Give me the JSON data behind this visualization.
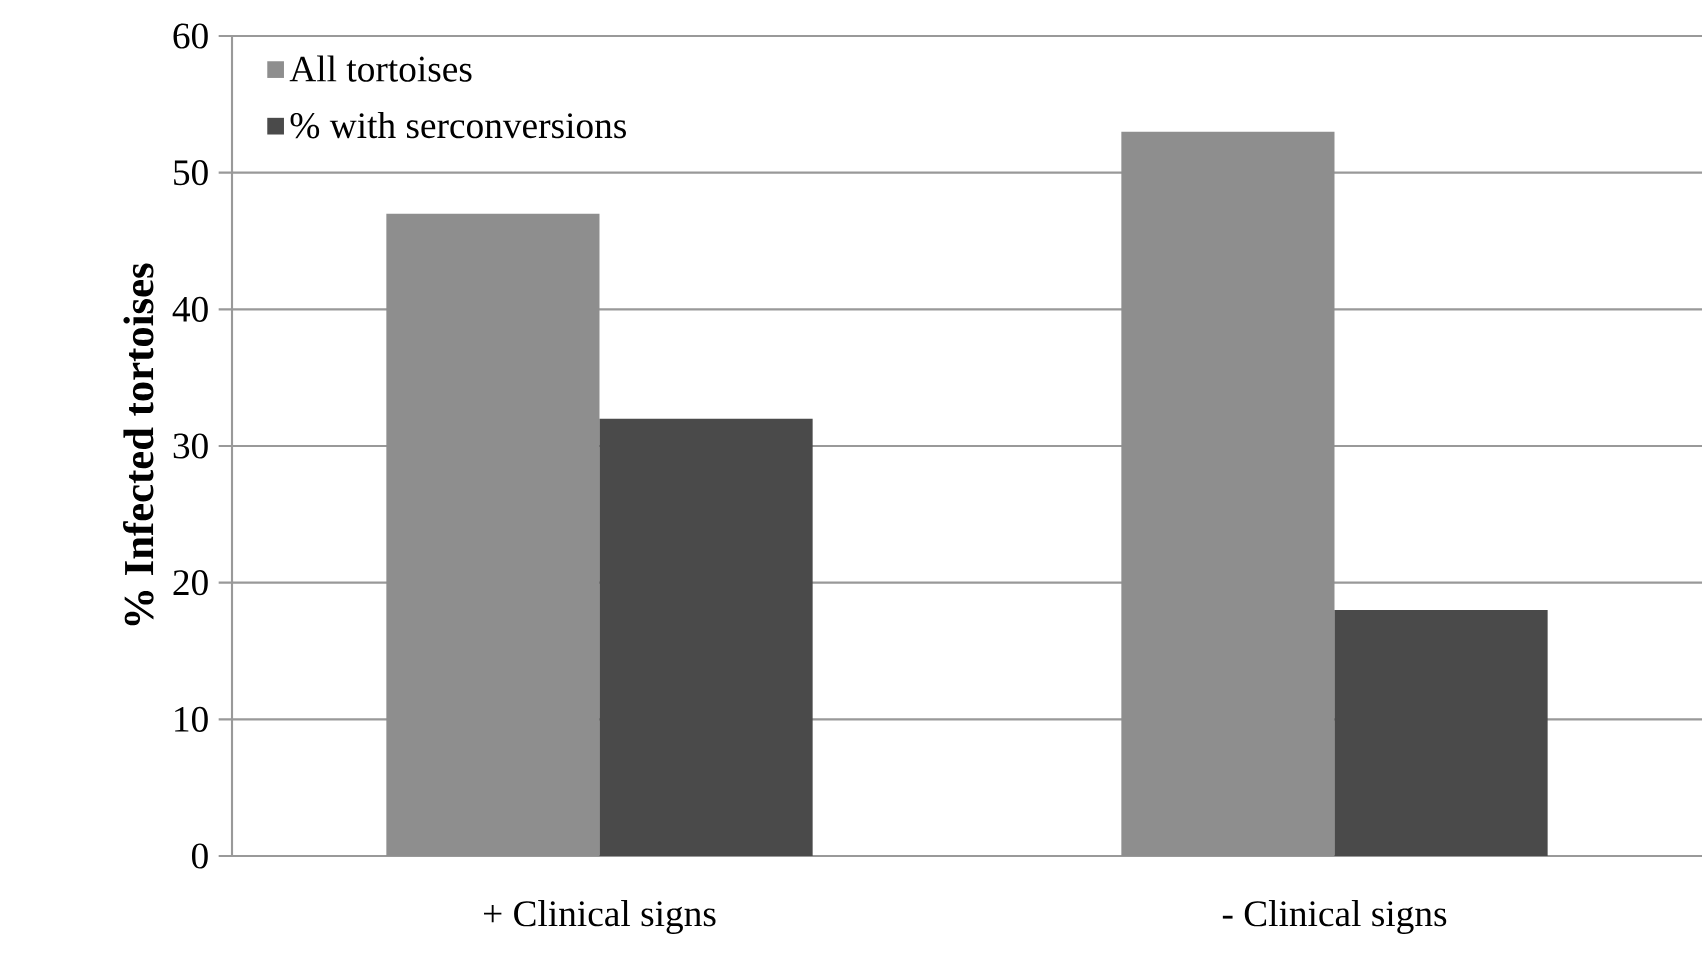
{
  "chart_data": {
    "type": "bar",
    "ylabel": "% Infected tortoises",
    "categories": [
      "+ Clinical signs",
      "- Clinical signs"
    ],
    "series": [
      {
        "name": "All tortoises",
        "color": "#8e8e8e",
        "values": [
          47,
          53
        ]
      },
      {
        "name": "% with serconversions",
        "color": "#4a4a4a",
        "values": [
          32,
          18
        ]
      }
    ],
    "ylim": [
      0,
      60
    ],
    "yticks": [
      0,
      10,
      20,
      30,
      40,
      50,
      60
    ],
    "grid": "y",
    "legend": "top left"
  }
}
